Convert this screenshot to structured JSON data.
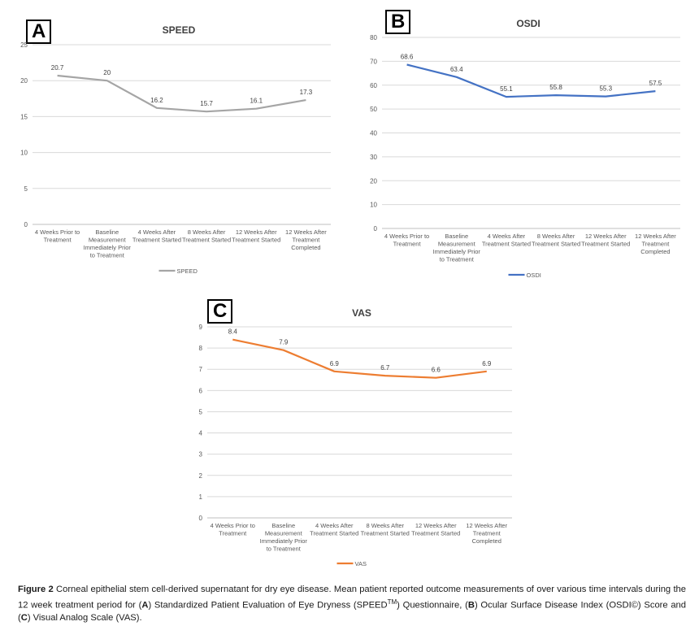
{
  "panels": [
    {
      "letter": "A"
    },
    {
      "letter": "B"
    },
    {
      "letter": "C"
    }
  ],
  "chart_data": [
    {
      "type": "line",
      "title": "SPEED",
      "categories": [
        [
          "4 Weeks Prior to",
          "Treatment"
        ],
        [
          "Baseline",
          "Measurement",
          "Immediately Prior",
          "to Treatment"
        ],
        [
          "4 Weeks After",
          "Treatment Started"
        ],
        [
          "8 Weeks After",
          "Treatment Started"
        ],
        [
          "12 Weeks After",
          "Treatment Started"
        ],
        [
          "12 Weeks After",
          "Treatment",
          "Completed"
        ]
      ],
      "series": [
        {
          "name": "SPEED",
          "values": [
            20.7,
            20,
            16.2,
            15.7,
            16.1,
            17.3
          ],
          "color": "#a5a5a5"
        }
      ],
      "ylim": [
        0,
        25
      ],
      "yticks": [
        0,
        5,
        10,
        15,
        20,
        25
      ],
      "data_labels": [
        "20.7",
        "20",
        "16.2",
        "15.7",
        "16.1",
        "17.3"
      ],
      "legend": "bottom",
      "grid": true
    },
    {
      "type": "line",
      "title": "OSDI",
      "categories": [
        [
          "4 Weeks Prior to",
          "Treatment"
        ],
        [
          "Baseline",
          "Measurement",
          "Immediately Prior",
          "to Treatment"
        ],
        [
          "4 Weeks After",
          "Treatment Started"
        ],
        [
          "8 Weeks After",
          "Treatment Started"
        ],
        [
          "12 Weeks After",
          "Treatment Started"
        ],
        [
          "12 Weeks After",
          "Treatment",
          "Completed"
        ]
      ],
      "series": [
        {
          "name": "OSDI",
          "values": [
            68.6,
            63.4,
            55.1,
            55.8,
            55.3,
            57.5
          ],
          "color": "#4472c4"
        }
      ],
      "ylim": [
        0,
        80
      ],
      "yticks": [
        0,
        10,
        20,
        30,
        40,
        50,
        60,
        70,
        80
      ],
      "data_labels": [
        "68.6",
        "63.4",
        "55.1",
        "55.8",
        "55.3",
        "57.5"
      ],
      "legend": "bottom",
      "grid": true
    },
    {
      "type": "line",
      "title": "VAS",
      "categories": [
        [
          "4 Weeks Prior to",
          "Treatment"
        ],
        [
          "Baseline",
          "Measurement",
          "Immediately Prior",
          "to Treatment"
        ],
        [
          "4 Weeks After",
          "Treatment Started"
        ],
        [
          "8 Weeks After",
          "Treatment Started"
        ],
        [
          "12 Weeks After",
          "Treatment Started"
        ],
        [
          "12 Weeks After",
          "Treatment",
          "Completed"
        ]
      ],
      "series": [
        {
          "name": "VAS",
          "values": [
            8.4,
            7.9,
            6.9,
            6.7,
            6.6,
            6.9
          ],
          "color": "#ed7d31"
        }
      ],
      "ylim": [
        0,
        9
      ],
      "yticks": [
        0,
        1,
        2,
        3,
        4,
        5,
        6,
        7,
        8,
        9
      ],
      "data_labels": [
        "8.4",
        "7.9",
        "6.9",
        "6.7",
        "6.6",
        "6.9"
      ],
      "legend": "bottom",
      "grid": true
    }
  ],
  "caption": {
    "label": "Figure 2",
    "text_1": " Corneal epithelial stem cell-derived supernatant for dry eye disease. Mean patient reported outcome measurements of over various time intervals during the 12 week treatment period for (",
    "a": "A",
    "text_2": ") Standardized Patient Evaluation of Eye Dryness (SPEED",
    "tm": "TM",
    "text_3": ") Questionnaire, (",
    "b": "B",
    "text_4": ") Ocular Surface Disease Index (OSDI©) Score and (",
    "c": "C",
    "text_5": ") Visual Analog Scale (VAS)."
  }
}
